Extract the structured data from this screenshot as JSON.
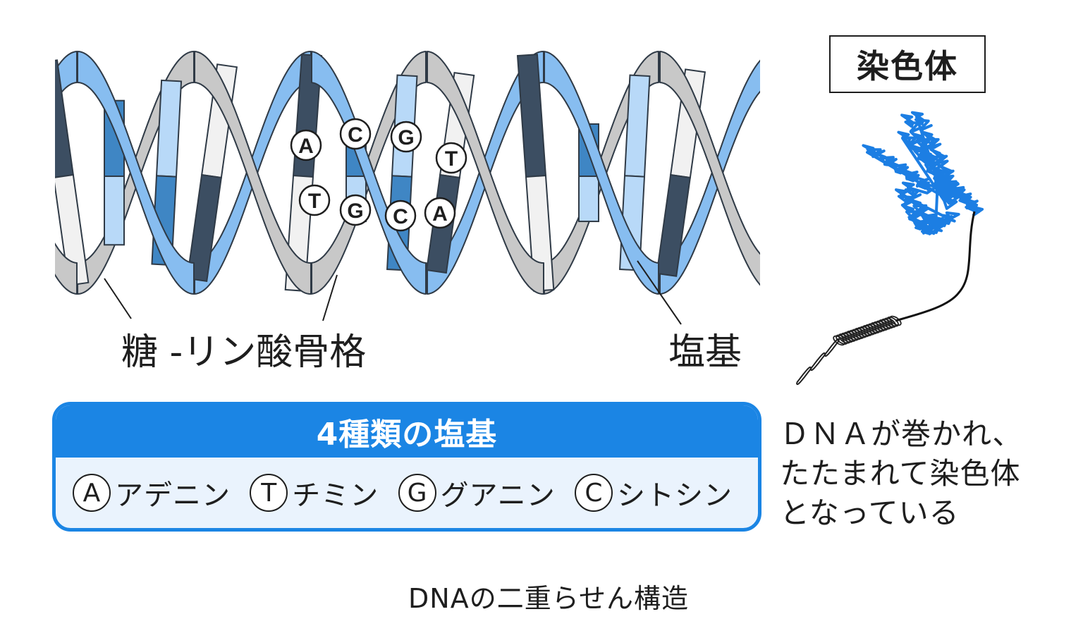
{
  "labels": {
    "backbone": "糖 -リン酸骨格",
    "base": "塩基"
  },
  "pairs": {
    "top": [
      "A",
      "C",
      "G",
      "T"
    ],
    "bottom": [
      "T",
      "G",
      "C",
      "A"
    ]
  },
  "chromosome": {
    "title": "染色体",
    "note_lines": [
      "ＤＮＡが巻かれ、",
      "たたまれて染色体",
      "となっている"
    ]
  },
  "bases_panel": {
    "title": "4種類の塩基",
    "items": [
      {
        "letter": "A",
        "name": "アデニン"
      },
      {
        "letter": "T",
        "name": "チミン"
      },
      {
        "letter": "G",
        "name": "グアニン"
      },
      {
        "letter": "C",
        "name": "シトシン"
      }
    ]
  },
  "caption": "DNAの二重らせん構造",
  "colors": {
    "strand_gray": "#c8c8c8",
    "strand_blue": "#87bdf0",
    "base_dark": "#3c4e62",
    "base_blue": "#3f86c4",
    "base_light_blue": "#b8d9f8",
    "base_white": "#f1f1f1",
    "accent": "#1b85e4",
    "chromosome_blue": "#1c7ee3"
  }
}
